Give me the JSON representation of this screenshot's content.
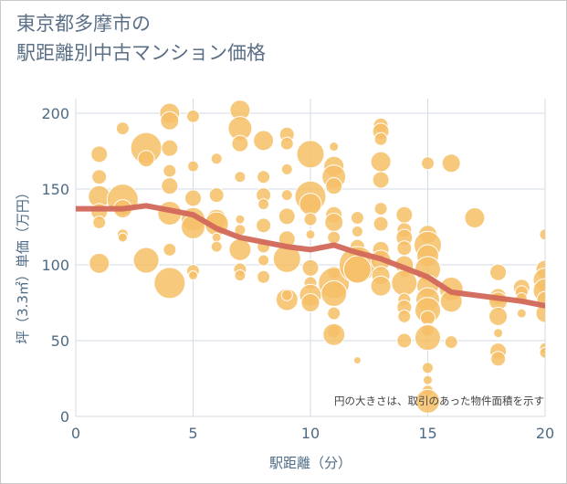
{
  "chart_data": {
    "type": "scatter",
    "title": "東京都多摩市の\n駅距離別中古マンション価格",
    "xlabel": "駅距離（分）",
    "ylabel": "坪（3.3㎡）単価（万円）",
    "note": "円の大きさは、取引のあった物件面積を示す",
    "xlim": [
      0,
      20
    ],
    "ylim": [
      0,
      200
    ],
    "xticks": [
      0,
      5,
      10,
      15,
      20
    ],
    "xtick_labels": [
      "0",
      "5",
      "10",
      "15",
      "20"
    ],
    "yticks": [
      0,
      50,
      100,
      150,
      200
    ],
    "ytick_labels": [
      "0",
      "50",
      "100",
      "150",
      "200"
    ],
    "grid": true,
    "colors": {
      "bubble_fill": "#f6bf66",
      "bubble_stroke": "#ffffff",
      "trend_line": "#d2685a",
      "grid": "#d3dbe3"
    },
    "trend_line": {
      "name": "",
      "x": [
        0,
        1,
        2,
        3,
        4,
        5,
        6,
        7,
        8,
        9,
        10,
        11,
        12,
        13,
        14,
        15,
        16,
        17,
        18,
        19,
        20
      ],
      "y": [
        137,
        137,
        137,
        139,
        136,
        133,
        124,
        118,
        115,
        112,
        110,
        113,
        108,
        104,
        98,
        92,
        82,
        80,
        78,
        76,
        73
      ]
    },
    "points": [
      {
        "x": 1,
        "y": 173,
        "s": 9
      },
      {
        "x": 1,
        "y": 158,
        "s": 8
      },
      {
        "x": 1,
        "y": 145,
        "s": 12
      },
      {
        "x": 1,
        "y": 135,
        "s": 9
      },
      {
        "x": 1,
        "y": 128,
        "s": 7
      },
      {
        "x": 1,
        "y": 101,
        "s": 11
      },
      {
        "x": 2,
        "y": 190,
        "s": 7
      },
      {
        "x": 2,
        "y": 143,
        "s": 17
      },
      {
        "x": 2,
        "y": 137,
        "s": 10
      },
      {
        "x": 2,
        "y": 120,
        "s": 6
      },
      {
        "x": 2,
        "y": 118,
        "s": 5
      },
      {
        "x": 3,
        "y": 177,
        "s": 17
      },
      {
        "x": 3,
        "y": 170,
        "s": 9
      },
      {
        "x": 3,
        "y": 103,
        "s": 14
      },
      {
        "x": 4,
        "y": 200,
        "s": 11
      },
      {
        "x": 4,
        "y": 195,
        "s": 10
      },
      {
        "x": 4,
        "y": 177,
        "s": 9
      },
      {
        "x": 4,
        "y": 162,
        "s": 7
      },
      {
        "x": 4,
        "y": 152,
        "s": 9
      },
      {
        "x": 4,
        "y": 134,
        "s": 13
      },
      {
        "x": 4,
        "y": 110,
        "s": 7
      },
      {
        "x": 4,
        "y": 88,
        "s": 17
      },
      {
        "x": 5,
        "y": 198,
        "s": 7
      },
      {
        "x": 5,
        "y": 165,
        "s": 6
      },
      {
        "x": 5,
        "y": 144,
        "s": 9
      },
      {
        "x": 5,
        "y": 130,
        "s": 13
      },
      {
        "x": 5,
        "y": 125,
        "s": 13
      },
      {
        "x": 5,
        "y": 96,
        "s": 7
      },
      {
        "x": 5,
        "y": 93,
        "s": 5
      },
      {
        "x": 6,
        "y": 170,
        "s": 6
      },
      {
        "x": 6,
        "y": 146,
        "s": 8
      },
      {
        "x": 6,
        "y": 130,
        "s": 11
      },
      {
        "x": 6,
        "y": 127,
        "s": 13
      },
      {
        "x": 6,
        "y": 118,
        "s": 5
      },
      {
        "x": 6,
        "y": 112,
        "s": 6
      },
      {
        "x": 7,
        "y": 202,
        "s": 11
      },
      {
        "x": 7,
        "y": 190,
        "s": 13
      },
      {
        "x": 7,
        "y": 180,
        "s": 9
      },
      {
        "x": 7,
        "y": 158,
        "s": 6
      },
      {
        "x": 7,
        "y": 130,
        "s": 5
      },
      {
        "x": 7,
        "y": 123,
        "s": 6
      },
      {
        "x": 7,
        "y": 110,
        "s": 12
      },
      {
        "x": 7,
        "y": 97,
        "s": 7
      },
      {
        "x": 7,
        "y": 93,
        "s": 6
      },
      {
        "x": 8,
        "y": 182,
        "s": 11
      },
      {
        "x": 8,
        "y": 158,
        "s": 7
      },
      {
        "x": 8,
        "y": 146,
        "s": 8
      },
      {
        "x": 8,
        "y": 140,
        "s": 6
      },
      {
        "x": 8,
        "y": 126,
        "s": 8
      },
      {
        "x": 8,
        "y": 112,
        "s": 7
      },
      {
        "x": 8,
        "y": 103,
        "s": 6
      },
      {
        "x": 8,
        "y": 92,
        "s": 7
      },
      {
        "x": 9,
        "y": 186,
        "s": 8
      },
      {
        "x": 9,
        "y": 180,
        "s": 7
      },
      {
        "x": 9,
        "y": 163,
        "s": 6
      },
      {
        "x": 9,
        "y": 146,
        "s": 6
      },
      {
        "x": 9,
        "y": 132,
        "s": 9
      },
      {
        "x": 9,
        "y": 117,
        "s": 9
      },
      {
        "x": 9,
        "y": 104,
        "s": 15
      },
      {
        "x": 9,
        "y": 77,
        "s": 12
      },
      {
        "x": 9,
        "y": 80,
        "s": 6
      },
      {
        "x": 10,
        "y": 173,
        "s": 15
      },
      {
        "x": 10,
        "y": 145,
        "s": 17
      },
      {
        "x": 10,
        "y": 140,
        "s": 12
      },
      {
        "x": 10,
        "y": 130,
        "s": 7
      },
      {
        "x": 10,
        "y": 120,
        "s": 5
      },
      {
        "x": 10,
        "y": 98,
        "s": 9
      },
      {
        "x": 10,
        "y": 88,
        "s": 7
      },
      {
        "x": 10,
        "y": 80,
        "s": 12
      },
      {
        "x": 10,
        "y": 75,
        "s": 10
      },
      {
        "x": 11,
        "y": 178,
        "s": 5
      },
      {
        "x": 11,
        "y": 165,
        "s": 11
      },
      {
        "x": 11,
        "y": 158,
        "s": 13
      },
      {
        "x": 11,
        "y": 152,
        "s": 9
      },
      {
        "x": 11,
        "y": 133,
        "s": 9
      },
      {
        "x": 11,
        "y": 128,
        "s": 10
      },
      {
        "x": 11,
        "y": 118,
        "s": 7
      },
      {
        "x": 11,
        "y": 95,
        "s": 7
      },
      {
        "x": 11,
        "y": 88,
        "s": 17
      },
      {
        "x": 11,
        "y": 81,
        "s": 14
      },
      {
        "x": 11,
        "y": 68,
        "s": 7
      },
      {
        "x": 11,
        "y": 56,
        "s": 7
      },
      {
        "x": 11,
        "y": 54,
        "s": 12
      },
      {
        "x": 12,
        "y": 131,
        "s": 7
      },
      {
        "x": 12,
        "y": 122,
        "s": 6
      },
      {
        "x": 12,
        "y": 112,
        "s": 8
      },
      {
        "x": 12,
        "y": 106,
        "s": 9
      },
      {
        "x": 12,
        "y": 100,
        "s": 20
      },
      {
        "x": 12,
        "y": 97,
        "s": 15
      },
      {
        "x": 12,
        "y": 37,
        "s": 4
      },
      {
        "x": 13,
        "y": 192,
        "s": 8
      },
      {
        "x": 13,
        "y": 188,
        "s": 9
      },
      {
        "x": 13,
        "y": 183,
        "s": 7
      },
      {
        "x": 13,
        "y": 168,
        "s": 11
      },
      {
        "x": 13,
        "y": 156,
        "s": 9
      },
      {
        "x": 13,
        "y": 137,
        "s": 7
      },
      {
        "x": 13,
        "y": 127,
        "s": 8
      },
      {
        "x": 13,
        "y": 110,
        "s": 9
      },
      {
        "x": 13,
        "y": 103,
        "s": 11
      },
      {
        "x": 13,
        "y": 93,
        "s": 10
      },
      {
        "x": 13,
        "y": 86,
        "s": 11
      },
      {
        "x": 14,
        "y": 133,
        "s": 9
      },
      {
        "x": 14,
        "y": 123,
        "s": 8
      },
      {
        "x": 14,
        "y": 118,
        "s": 9
      },
      {
        "x": 14,
        "y": 111,
        "s": 8
      },
      {
        "x": 14,
        "y": 100,
        "s": 10
      },
      {
        "x": 14,
        "y": 95,
        "s": 6
      },
      {
        "x": 14,
        "y": 88,
        "s": 14
      },
      {
        "x": 14,
        "y": 77,
        "s": 7
      },
      {
        "x": 14,
        "y": 72,
        "s": 8
      },
      {
        "x": 14,
        "y": 66,
        "s": 7
      },
      {
        "x": 14,
        "y": 50,
        "s": 8
      },
      {
        "x": 15,
        "y": 167,
        "s": 7
      },
      {
        "x": 15,
        "y": 120,
        "s": 10
      },
      {
        "x": 15,
        "y": 113,
        "s": 15
      },
      {
        "x": 15,
        "y": 106,
        "s": 12
      },
      {
        "x": 15,
        "y": 97,
        "s": 14
      },
      {
        "x": 15,
        "y": 86,
        "s": 12
      },
      {
        "x": 15,
        "y": 77,
        "s": 13
      },
      {
        "x": 15,
        "y": 70,
        "s": 14
      },
      {
        "x": 15,
        "y": 65,
        "s": 8
      },
      {
        "x": 15,
        "y": 57,
        "s": 7
      },
      {
        "x": 15,
        "y": 52,
        "s": 14
      },
      {
        "x": 15,
        "y": 32,
        "s": 6
      },
      {
        "x": 15,
        "y": 24,
        "s": 5
      },
      {
        "x": 15,
        "y": 17,
        "s": 6
      },
      {
        "x": 15,
        "y": 10,
        "s": 13
      },
      {
        "x": 16,
        "y": 167,
        "s": 10
      },
      {
        "x": 16,
        "y": 84,
        "s": 13
      },
      {
        "x": 16,
        "y": 76,
        "s": 12
      },
      {
        "x": 16,
        "y": 49,
        "s": 7
      },
      {
        "x": 17,
        "y": 131,
        "s": 11
      },
      {
        "x": 18,
        "y": 95,
        "s": 9
      },
      {
        "x": 18,
        "y": 79,
        "s": 9
      },
      {
        "x": 18,
        "y": 76,
        "s": 10
      },
      {
        "x": 18,
        "y": 66,
        "s": 10
      },
      {
        "x": 18,
        "y": 55,
        "s": 5
      },
      {
        "x": 18,
        "y": 43,
        "s": 9
      },
      {
        "x": 18,
        "y": 38,
        "s": 8
      },
      {
        "x": 19,
        "y": 85,
        "s": 9
      },
      {
        "x": 19,
        "y": 82,
        "s": 7
      },
      {
        "x": 19,
        "y": 78,
        "s": 6
      },
      {
        "x": 19,
        "y": 68,
        "s": 5
      },
      {
        "x": 20,
        "y": 120,
        "s": 6
      },
      {
        "x": 20,
        "y": 97,
        "s": 10
      },
      {
        "x": 20,
        "y": 90,
        "s": 13
      },
      {
        "x": 20,
        "y": 83,
        "s": 13
      },
      {
        "x": 20,
        "y": 77,
        "s": 9
      },
      {
        "x": 20,
        "y": 68,
        "s": 10
      },
      {
        "x": 20,
        "y": 45,
        "s": 6
      },
      {
        "x": 20,
        "y": 42,
        "s": 6
      }
    ]
  }
}
